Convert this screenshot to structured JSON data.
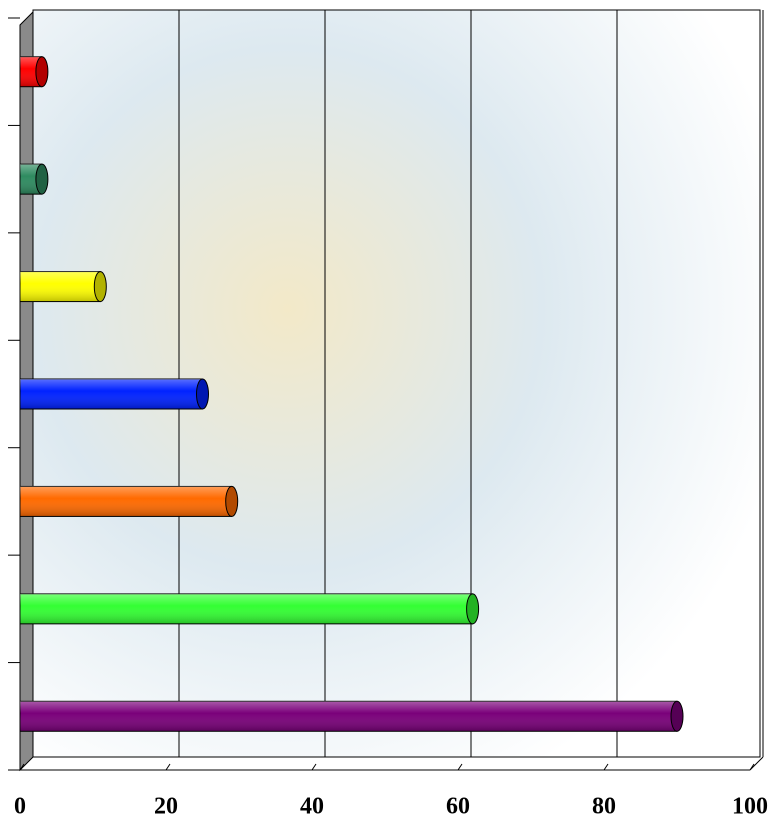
{
  "chart_data": {
    "type": "bar",
    "orientation": "horizontal",
    "categories": [
      null,
      null,
      null,
      null,
      null,
      null,
      null
    ],
    "values": [
      90,
      62,
      29,
      25,
      11,
      3,
      3
    ],
    "colors": [
      "#7a007a",
      "#33ff33",
      "#ff6a00",
      "#0022ff",
      "#ffff00",
      "#2e8b60",
      "#ff0000"
    ],
    "xlim": [
      0,
      100
    ],
    "xticks": [
      0,
      20,
      40,
      60,
      80,
      100
    ],
    "grid": true
  }
}
